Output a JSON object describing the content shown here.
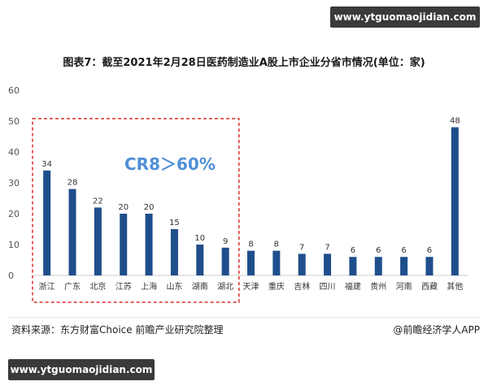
{
  "watermark": {
    "top": "www.ytguomaojidian.com",
    "bottom": "www.ytguomaojidian.com"
  },
  "title": "图表7：截至2021年2月28日医药制造业A股上市企业分省市情况(单位：家)",
  "annotation": "CR8＞60%",
  "footer": {
    "source": "资料来源：东方财富Choice 前瞻产业研究院整理",
    "credit": "@前瞻经济学人APP"
  },
  "colors": {
    "bar": "#1f4e8c",
    "highlight_box": "#d9302c",
    "annotation": "#4f8fd6",
    "axis_text": "#555555"
  },
  "chart_data": {
    "type": "bar",
    "categories": [
      "浙江",
      "广东",
      "北京",
      "江苏",
      "上海",
      "山东",
      "湖南",
      "湖北",
      "天津",
      "重庆",
      "吉林",
      "四川",
      "福建",
      "贵州",
      "河南",
      "西藏",
      "其他"
    ],
    "values": [
      34,
      28,
      22,
      20,
      20,
      15,
      10,
      9,
      8,
      8,
      7,
      7,
      6,
      6,
      6,
      6,
      48
    ],
    "ylim": [
      0,
      60
    ],
    "yticks": [
      0,
      10,
      20,
      30,
      40,
      50,
      60
    ],
    "highlight_categories": 8,
    "grid": false,
    "data_labels": true
  }
}
